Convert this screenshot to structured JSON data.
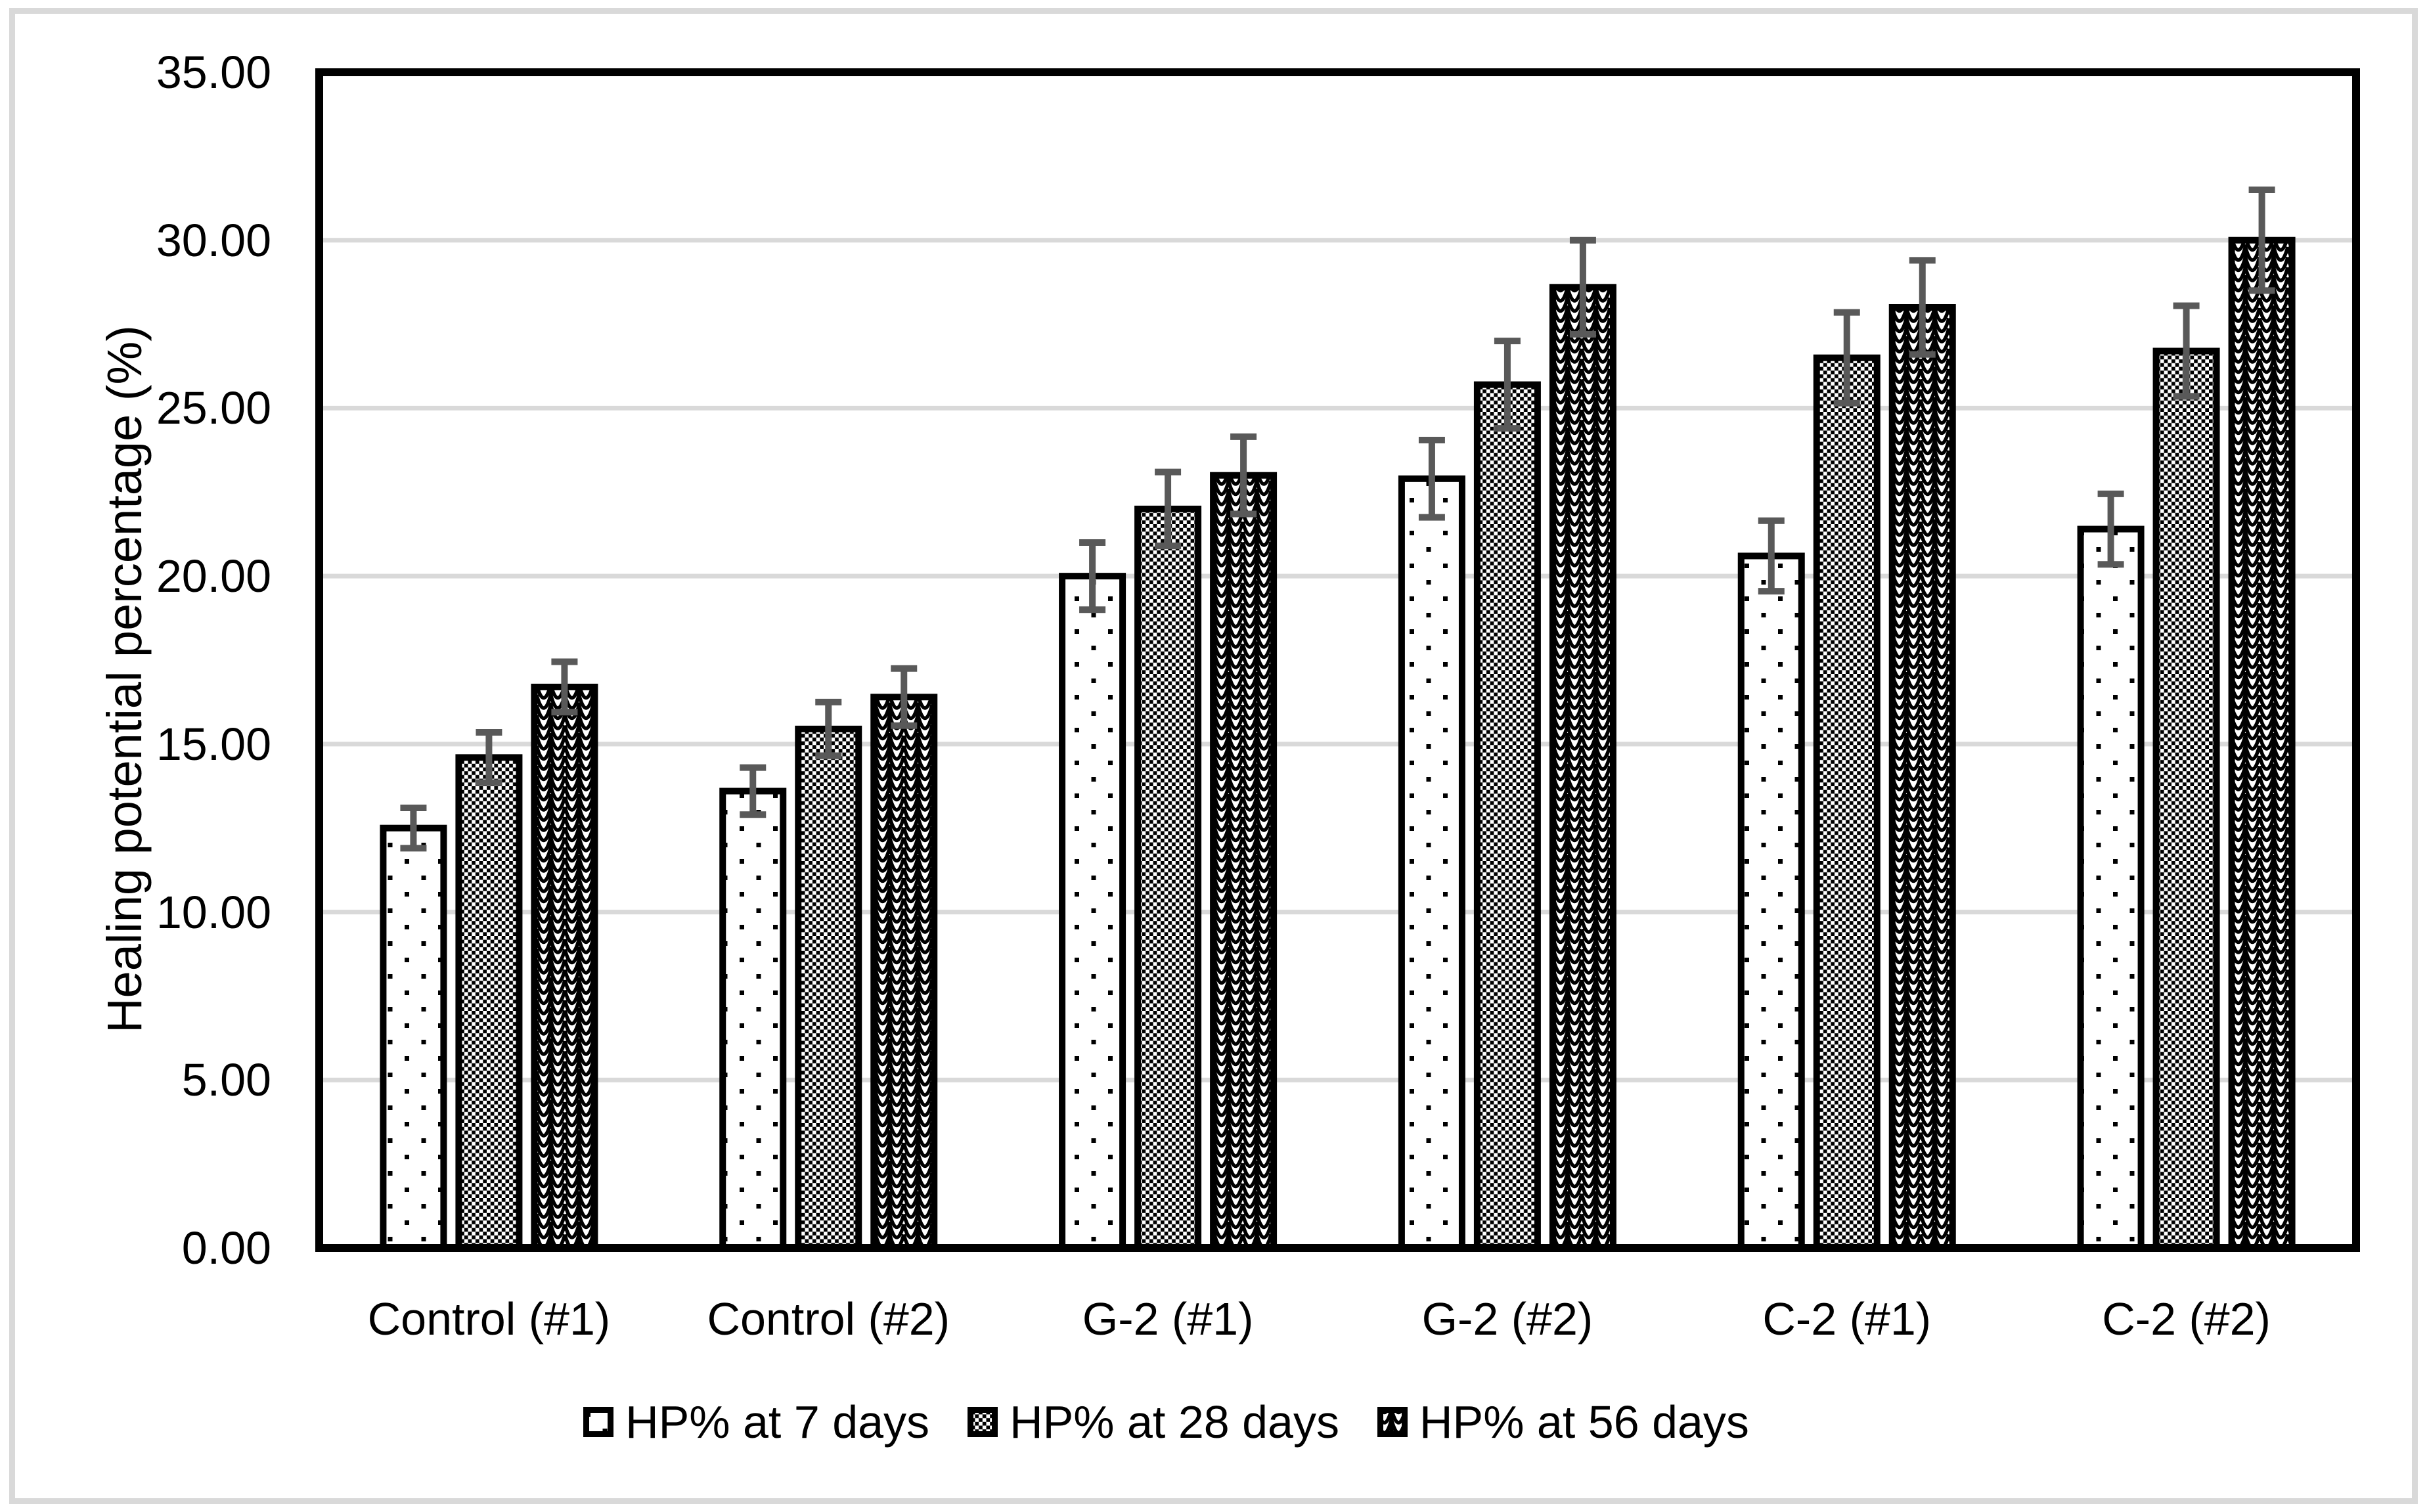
{
  "chart_data": {
    "type": "bar",
    "title": "",
    "xlabel": "",
    "ylabel": "Healing potential percentage (%)",
    "ylim": [
      0,
      35
    ],
    "ytick_step": 5,
    "ytick_labels": [
      "0.00",
      "5.00",
      "10.00",
      "15.00",
      "20.00",
      "25.00",
      "30.00",
      "35.00"
    ],
    "grid": true,
    "legend_position": "bottom",
    "categories": [
      "Control (#1)",
      "Control (#2)",
      "G-2 (#1)",
      "G-2 (#2)",
      "C-2 (#1)",
      "C-2 (#2)"
    ],
    "series": [
      {
        "name": "HP% at 7 days",
        "pattern": "dots",
        "values": [
          12.5,
          13.6,
          20.0,
          22.9,
          20.6,
          21.4
        ],
        "errors": [
          0.6,
          0.7,
          1.0,
          1.15,
          1.05,
          1.05
        ]
      },
      {
        "name": "HP% at 28 days",
        "pattern": "checker",
        "values": [
          14.6,
          15.45,
          22.0,
          25.7,
          26.5,
          26.7
        ],
        "errors": [
          0.75,
          0.8,
          1.1,
          1.3,
          1.35,
          1.35
        ]
      },
      {
        "name": "HP% at 56 days",
        "pattern": "wave",
        "values": [
          16.7,
          16.4,
          23.0,
          28.6,
          28.0,
          30.0
        ],
        "errors": [
          0.75,
          0.85,
          1.15,
          1.4,
          1.4,
          1.5
        ]
      }
    ]
  },
  "colors": {
    "bar_stroke": "#000000",
    "error_bar": "#595959",
    "gridline": "#d9d9d9",
    "plot_border": "#000000",
    "frame": "#d9d9d9",
    "background": "#ffffff"
  }
}
